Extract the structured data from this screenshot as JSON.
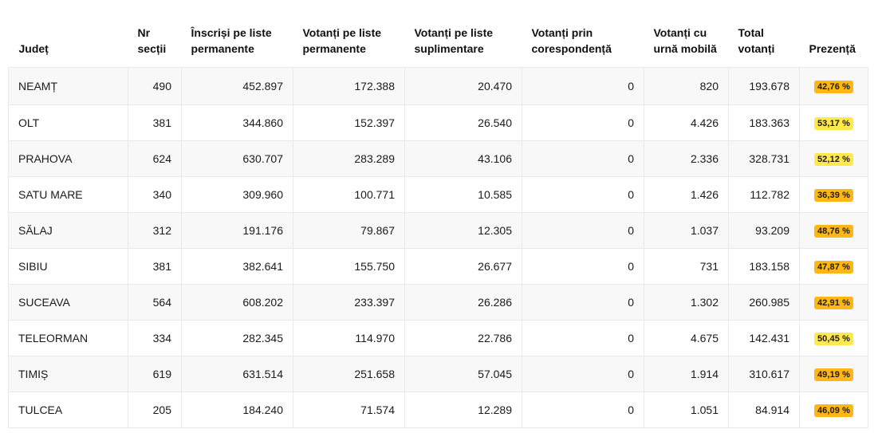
{
  "columns": [
    "Județ",
    "Nr secții",
    "Înscriși pe liste permanente",
    "Votanți pe liste permanente",
    "Votanți pe liste suplimentare",
    "Votanți prin corespondență",
    "Votanți cu urnă mobilă",
    "Total votanți",
    "Prezență"
  ],
  "colors": {
    "badge_high": "#ffb617",
    "badge_low": "#ffe94f",
    "row_stripe": "#f8f8f8",
    "border": "#e9e9e9"
  },
  "rows": [
    {
      "judet": "NEAMȚ",
      "sectii": "490",
      "inscrisi": "452.897",
      "permanente": "172.388",
      "suplimentare": "20.470",
      "corespondenta": "0",
      "urna_mobila": "820",
      "total": "193.678",
      "prezenta": "42,76 %",
      "badge": "orange"
    },
    {
      "judet": "OLT",
      "sectii": "381",
      "inscrisi": "344.860",
      "permanente": "152.397",
      "suplimentare": "26.540",
      "corespondenta": "0",
      "urna_mobila": "4.426",
      "total": "183.363",
      "prezenta": "53,17 %",
      "badge": "yellow"
    },
    {
      "judet": "PRAHOVA",
      "sectii": "624",
      "inscrisi": "630.707",
      "permanente": "283.289",
      "suplimentare": "43.106",
      "corespondenta": "0",
      "urna_mobila": "2.336",
      "total": "328.731",
      "prezenta": "52,12 %",
      "badge": "yellow"
    },
    {
      "judet": "SATU MARE",
      "sectii": "340",
      "inscrisi": "309.960",
      "permanente": "100.771",
      "suplimentare": "10.585",
      "corespondenta": "0",
      "urna_mobila": "1.426",
      "total": "112.782",
      "prezenta": "36,39 %",
      "badge": "orange"
    },
    {
      "judet": "SĂLAJ",
      "sectii": "312",
      "inscrisi": "191.176",
      "permanente": "79.867",
      "suplimentare": "12.305",
      "corespondenta": "0",
      "urna_mobila": "1.037",
      "total": "93.209",
      "prezenta": "48,76 %",
      "badge": "orange"
    },
    {
      "judet": "SIBIU",
      "sectii": "381",
      "inscrisi": "382.641",
      "permanente": "155.750",
      "suplimentare": "26.677",
      "corespondenta": "0",
      "urna_mobila": "731",
      "total": "183.158",
      "prezenta": "47,87 %",
      "badge": "orange"
    },
    {
      "judet": "SUCEAVA",
      "sectii": "564",
      "inscrisi": "608.202",
      "permanente": "233.397",
      "suplimentare": "26.286",
      "corespondenta": "0",
      "urna_mobila": "1.302",
      "total": "260.985",
      "prezenta": "42,91 %",
      "badge": "orange"
    },
    {
      "judet": "TELEORMAN",
      "sectii": "334",
      "inscrisi": "282.345",
      "permanente": "114.970",
      "suplimentare": "22.786",
      "corespondenta": "0",
      "urna_mobila": "4.675",
      "total": "142.431",
      "prezenta": "50,45 %",
      "badge": "yellow"
    },
    {
      "judet": "TIMIȘ",
      "sectii": "619",
      "inscrisi": "631.514",
      "permanente": "251.658",
      "suplimentare": "57.045",
      "corespondenta": "0",
      "urna_mobila": "1.914",
      "total": "310.617",
      "prezenta": "49,19 %",
      "badge": "orange"
    },
    {
      "judet": "TULCEA",
      "sectii": "205",
      "inscrisi": "184.240",
      "permanente": "71.574",
      "suplimentare": "12.289",
      "corespondenta": "0",
      "urna_mobila": "1.051",
      "total": "84.914",
      "prezenta": "46,09 %",
      "badge": "orange"
    }
  ]
}
